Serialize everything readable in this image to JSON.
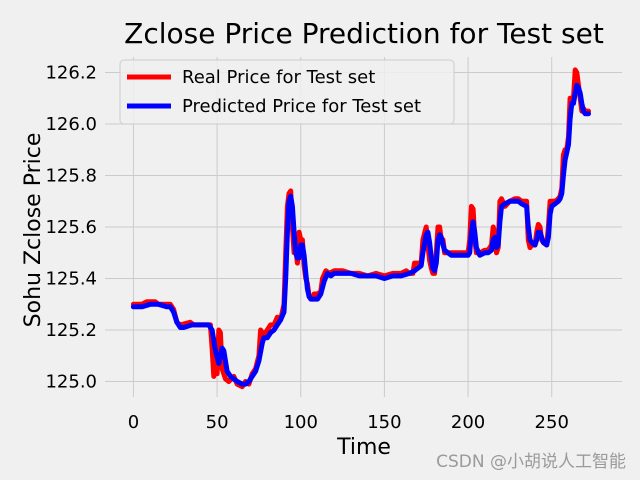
{
  "chart_data": {
    "type": "line",
    "title": "Zclose Price Prediction for Test set",
    "xlabel": "Time",
    "ylabel": "Sohu Zclose Price",
    "xlim": [
      -17,
      292
    ],
    "ylim": [
      124.94,
      126.26
    ],
    "xticks": [
      0,
      50,
      100,
      150,
      200,
      250
    ],
    "yticks": [
      125.0,
      125.2,
      125.4,
      125.6,
      125.8,
      126.0,
      126.2
    ],
    "ytick_labels": [
      "125.0",
      "125.2",
      "125.4",
      "125.6",
      "125.8",
      "126.0",
      "126.2"
    ],
    "grid": true,
    "legend_position": "top-left",
    "series": [
      {
        "name": "Real Price for Test set",
        "color": "#ff0000",
        "points": [
          [
            0,
            125.3
          ],
          [
            5,
            125.3
          ],
          [
            8,
            125.31
          ],
          [
            13,
            125.31
          ],
          [
            15,
            125.3
          ],
          [
            22,
            125.3
          ],
          [
            24,
            125.28
          ],
          [
            26,
            125.23
          ],
          [
            28,
            125.22
          ],
          [
            34,
            125.23
          ],
          [
            36,
            125.22
          ],
          [
            46,
            125.22
          ],
          [
            47,
            125.13
          ],
          [
            48,
            125.02
          ],
          [
            49,
            125.05
          ],
          [
            50,
            125.03
          ],
          [
            51,
            125.2
          ],
          [
            52,
            125.19
          ],
          [
            53,
            125.05
          ],
          [
            55,
            125.01
          ],
          [
            57,
            125.0
          ],
          [
            60,
            125.02
          ],
          [
            62,
            124.99
          ],
          [
            65,
            124.98
          ],
          [
            67,
            125.0
          ],
          [
            69,
            124.99
          ],
          [
            71,
            125.03
          ],
          [
            73,
            125.05
          ],
          [
            75,
            125.1
          ],
          [
            76,
            125.2
          ],
          [
            78,
            125.18
          ],
          [
            80,
            125.2
          ],
          [
            82,
            125.22
          ],
          [
            84,
            125.22
          ],
          [
            86,
            125.25
          ],
          [
            88,
            125.24
          ],
          [
            90,
            125.3
          ],
          [
            91,
            125.5
          ],
          [
            92,
            125.68
          ],
          [
            93,
            125.73
          ],
          [
            94,
            125.74
          ],
          [
            95,
            125.6
          ],
          [
            96,
            125.5
          ],
          [
            97,
            125.52
          ],
          [
            98,
            125.46
          ],
          [
            99,
            125.58
          ],
          [
            100,
            125.55
          ],
          [
            101,
            125.55
          ],
          [
            102,
            125.45
          ],
          [
            103,
            125.4
          ],
          [
            104,
            125.38
          ],
          [
            105,
            125.33
          ],
          [
            106,
            125.33
          ],
          [
            107,
            125.32
          ],
          [
            108,
            125.34
          ],
          [
            110,
            125.34
          ],
          [
            112,
            125.35
          ],
          [
            113,
            125.4
          ],
          [
            115,
            125.43
          ],
          [
            117,
            125.42
          ],
          [
            120,
            125.43
          ],
          [
            125,
            125.43
          ],
          [
            130,
            125.42
          ],
          [
            135,
            125.42
          ],
          [
            140,
            125.41
          ],
          [
            145,
            125.42
          ],
          [
            150,
            125.41
          ],
          [
            155,
            125.42
          ],
          [
            160,
            125.42
          ],
          [
            163,
            125.43
          ],
          [
            165,
            125.42
          ],
          [
            167,
            125.42
          ],
          [
            168,
            125.46
          ],
          [
            170,
            125.46
          ],
          [
            172,
            125.46
          ],
          [
            173,
            125.55
          ],
          [
            175,
            125.6
          ],
          [
            176,
            125.53
          ],
          [
            177,
            125.47
          ],
          [
            178,
            125.44
          ],
          [
            179,
            125.42
          ],
          [
            180,
            125.42
          ],
          [
            181,
            125.5
          ],
          [
            182,
            125.6
          ],
          [
            183,
            125.6
          ],
          [
            184,
            125.55
          ],
          [
            185,
            125.55
          ],
          [
            186,
            125.5
          ],
          [
            188,
            125.5
          ],
          [
            190,
            125.5
          ],
          [
            192,
            125.5
          ],
          [
            195,
            125.5
          ],
          [
            198,
            125.5
          ],
          [
            200,
            125.5
          ],
          [
            201,
            125.55
          ],
          [
            202,
            125.68
          ],
          [
            203,
            125.67
          ],
          [
            204,
            125.55
          ],
          [
            205,
            125.5
          ],
          [
            207,
            125.5
          ],
          [
            210,
            125.51
          ],
          [
            212,
            125.51
          ],
          [
            214,
            125.53
          ],
          [
            215,
            125.6
          ],
          [
            216,
            125.58
          ],
          [
            217,
            125.5
          ],
          [
            218,
            125.52
          ],
          [
            219,
            125.7
          ],
          [
            220,
            125.71
          ],
          [
            222,
            125.68
          ],
          [
            225,
            125.7
          ],
          [
            228,
            125.71
          ],
          [
            230,
            125.71
          ],
          [
            232,
            125.7
          ],
          [
            235,
            125.7
          ],
          [
            236,
            125.55
          ],
          [
            237,
            125.52
          ],
          [
            238,
            125.53
          ],
          [
            240,
            125.53
          ],
          [
            241,
            125.58
          ],
          [
            242,
            125.61
          ],
          [
            243,
            125.6
          ],
          [
            244,
            125.55
          ],
          [
            245,
            125.54
          ],
          [
            247,
            125.53
          ],
          [
            248,
            125.6
          ],
          [
            249,
            125.7
          ],
          [
            250,
            125.7
          ],
          [
            252,
            125.7
          ],
          [
            254,
            125.71
          ],
          [
            255,
            125.72
          ],
          [
            256,
            125.75
          ],
          [
            257,
            125.88
          ],
          [
            258,
            125.9
          ],
          [
            259,
            125.9
          ],
          [
            260,
            125.95
          ],
          [
            261,
            126.1
          ],
          [
            262,
            126.1
          ],
          [
            263,
            126.1
          ],
          [
            264,
            126.21
          ],
          [
            265,
            126.2
          ],
          [
            266,
            126.15
          ],
          [
            267,
            126.1
          ],
          [
            268,
            126.05
          ],
          [
            269,
            126.06
          ],
          [
            270,
            126.05
          ],
          [
            272,
            126.05
          ]
        ]
      },
      {
        "name": "Predicted Price for Test set",
        "color": "#0000ff",
        "points": [
          [
            0,
            125.29
          ],
          [
            5,
            125.29
          ],
          [
            10,
            125.3
          ],
          [
            15,
            125.3
          ],
          [
            20,
            125.29
          ],
          [
            22,
            125.29
          ],
          [
            24,
            125.27
          ],
          [
            26,
            125.23
          ],
          [
            28,
            125.21
          ],
          [
            30,
            125.21
          ],
          [
            35,
            125.22
          ],
          [
            40,
            125.22
          ],
          [
            45,
            125.22
          ],
          [
            47,
            125.2
          ],
          [
            49,
            125.12
          ],
          [
            51,
            125.07
          ],
          [
            53,
            125.13
          ],
          [
            54,
            125.12
          ],
          [
            56,
            125.04
          ],
          [
            58,
            125.02
          ],
          [
            60,
            125.01
          ],
          [
            62,
            125.0
          ],
          [
            65,
            124.99
          ],
          [
            67,
            124.99
          ],
          [
            69,
            125.0
          ],
          [
            71,
            125.02
          ],
          [
            73,
            125.04
          ],
          [
            75,
            125.08
          ],
          [
            77,
            125.15
          ],
          [
            78,
            125.17
          ],
          [
            80,
            125.17
          ],
          [
            82,
            125.19
          ],
          [
            84,
            125.2
          ],
          [
            86,
            125.22
          ],
          [
            88,
            125.24
          ],
          [
            90,
            125.27
          ],
          [
            91,
            125.4
          ],
          [
            92,
            125.58
          ],
          [
            93,
            125.7
          ],
          [
            94,
            125.72
          ],
          [
            95,
            125.68
          ],
          [
            96,
            125.58
          ],
          [
            97,
            125.5
          ],
          [
            98,
            125.48
          ],
          [
            99,
            125.48
          ],
          [
            100,
            125.53
          ],
          [
            101,
            125.53
          ],
          [
            102,
            125.49
          ],
          [
            103,
            125.42
          ],
          [
            104,
            125.36
          ],
          [
            105,
            125.33
          ],
          [
            106,
            125.32
          ],
          [
            108,
            125.32
          ],
          [
            110,
            125.32
          ],
          [
            112,
            125.34
          ],
          [
            114,
            125.39
          ],
          [
            116,
            125.42
          ],
          [
            118,
            125.41
          ],
          [
            120,
            125.42
          ],
          [
            125,
            125.42
          ],
          [
            130,
            125.42
          ],
          [
            135,
            125.41
          ],
          [
            140,
            125.41
          ],
          [
            145,
            125.41
          ],
          [
            150,
            125.4
          ],
          [
            155,
            125.41
          ],
          [
            160,
            125.41
          ],
          [
            165,
            125.42
          ],
          [
            168,
            125.43
          ],
          [
            170,
            125.44
          ],
          [
            172,
            125.45
          ],
          [
            173,
            125.5
          ],
          [
            175,
            125.57
          ],
          [
            176,
            125.58
          ],
          [
            177,
            125.54
          ],
          [
            178,
            125.48
          ],
          [
            179,
            125.44
          ],
          [
            180,
            125.43
          ],
          [
            181,
            125.46
          ],
          [
            182,
            125.55
          ],
          [
            183,
            125.57
          ],
          [
            184,
            125.56
          ],
          [
            185,
            125.53
          ],
          [
            186,
            125.51
          ],
          [
            188,
            125.5
          ],
          [
            190,
            125.49
          ],
          [
            192,
            125.49
          ],
          [
            195,
            125.49
          ],
          [
            198,
            125.49
          ],
          [
            200,
            125.49
          ],
          [
            201,
            125.5
          ],
          [
            202,
            125.58
          ],
          [
            203,
            125.62
          ],
          [
            204,
            125.58
          ],
          [
            205,
            125.52
          ],
          [
            207,
            125.49
          ],
          [
            210,
            125.5
          ],
          [
            212,
            125.5
          ],
          [
            214,
            125.51
          ],
          [
            215,
            125.55
          ],
          [
            216,
            125.56
          ],
          [
            217,
            125.52
          ],
          [
            218,
            125.53
          ],
          [
            219,
            125.62
          ],
          [
            220,
            125.68
          ],
          [
            222,
            125.69
          ],
          [
            225,
            125.7
          ],
          [
            228,
            125.7
          ],
          [
            230,
            125.7
          ],
          [
            232,
            125.69
          ],
          [
            235,
            125.68
          ],
          [
            236,
            125.6
          ],
          [
            237,
            125.55
          ],
          [
            238,
            125.54
          ],
          [
            240,
            125.53
          ],
          [
            241,
            125.55
          ],
          [
            242,
            125.58
          ],
          [
            243,
            125.58
          ],
          [
            244,
            125.56
          ],
          [
            245,
            125.54
          ],
          [
            247,
            125.53
          ],
          [
            248,
            125.56
          ],
          [
            249,
            125.65
          ],
          [
            250,
            125.68
          ],
          [
            252,
            125.69
          ],
          [
            254,
            125.7
          ],
          [
            255,
            125.71
          ],
          [
            256,
            125.73
          ],
          [
            257,
            125.8
          ],
          [
            258,
            125.86
          ],
          [
            259,
            125.89
          ],
          [
            260,
            125.92
          ],
          [
            261,
            126.02
          ],
          [
            262,
            126.08
          ],
          [
            263,
            126.08
          ],
          [
            264,
            126.12
          ],
          [
            265,
            126.15
          ],
          [
            266,
            126.14
          ],
          [
            267,
            126.12
          ],
          [
            268,
            126.08
          ],
          [
            269,
            126.05
          ],
          [
            270,
            126.04
          ],
          [
            272,
            126.04
          ]
        ]
      }
    ]
  },
  "watermark": "CSDN @小胡说人工智能"
}
